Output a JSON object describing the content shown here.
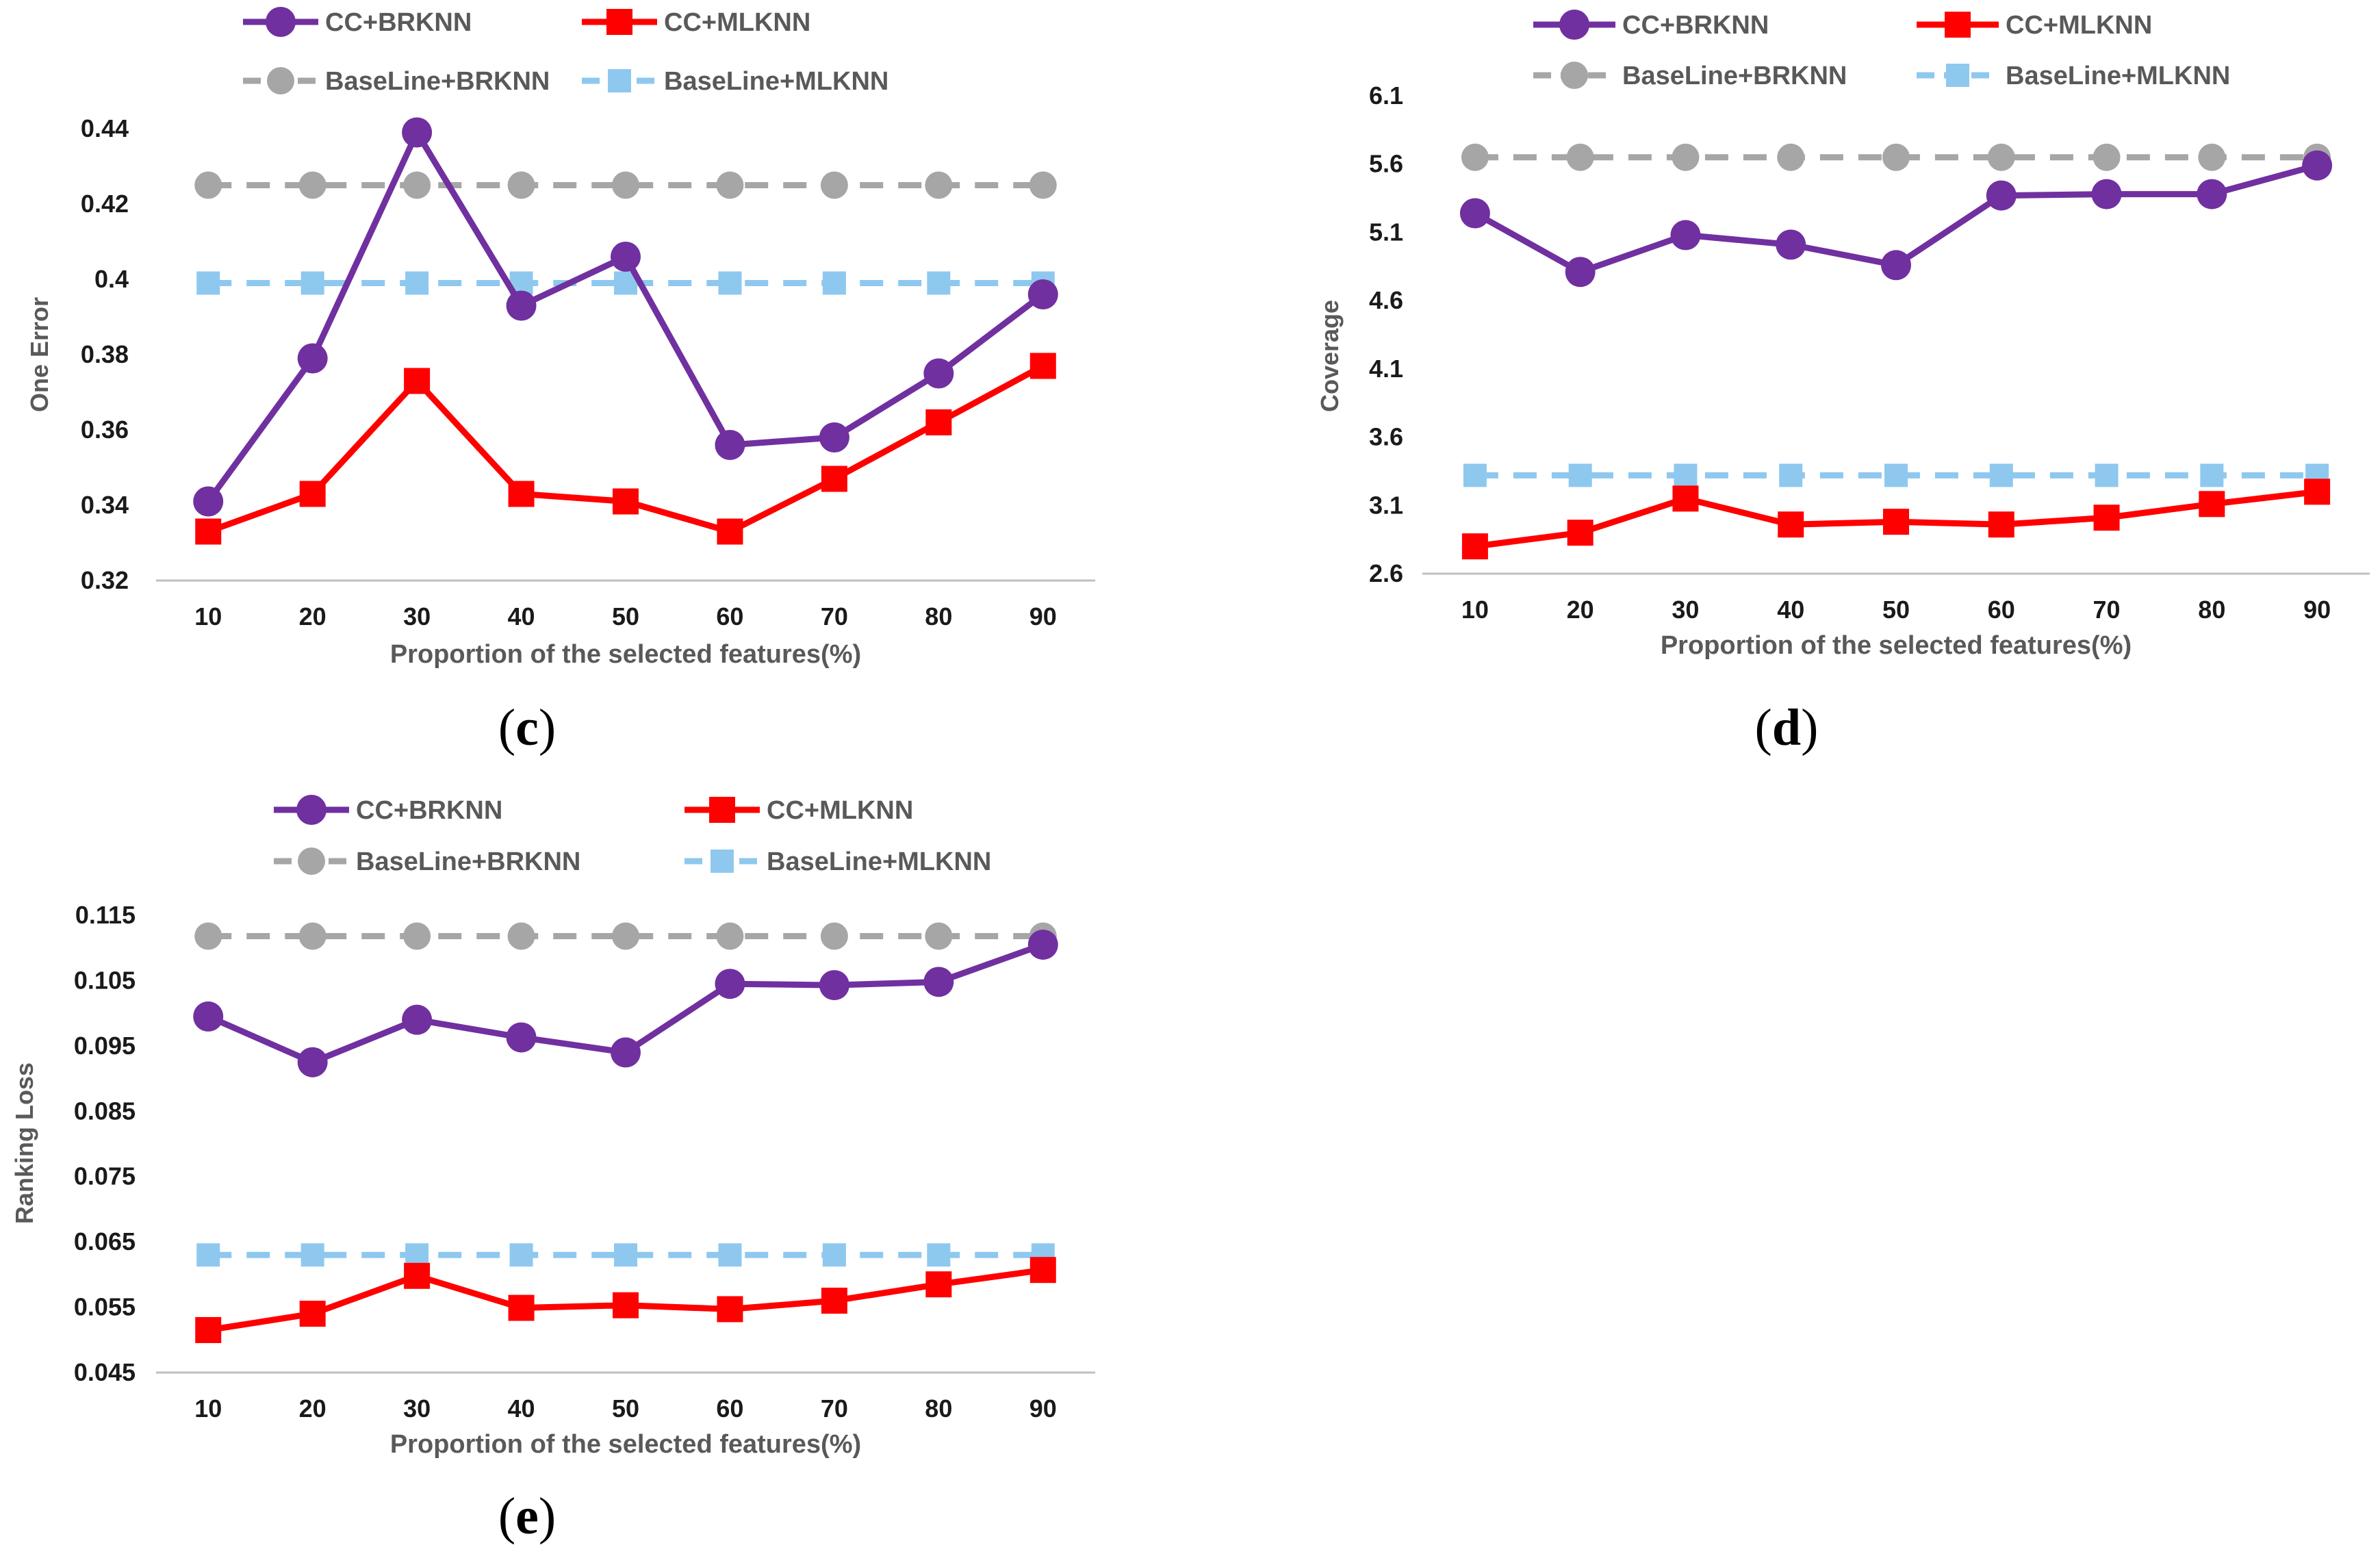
{
  "colors": {
    "cc_brknn": "#7030a0",
    "cc_mlknn": "#ff0000",
    "baseline_brknn": "#a6a6a6",
    "baseline_mlknn": "#8ec8ef",
    "axis": "#bfbfbf"
  },
  "chart_data": [
    {
      "type": "line",
      "panel": "c",
      "caption_open": "(",
      "caption_letter": "c",
      "caption_close": ")",
      "ylabel": "One Error",
      "xlabel": "Proportion  of the selected features(%)",
      "categories": [
        "10",
        "20",
        "30",
        "40",
        "50",
        "60",
        "70",
        "80",
        "90"
      ],
      "ylim": [
        0.32,
        0.44
      ],
      "yticks": [
        0.32,
        0.34,
        0.36,
        0.38,
        0.4,
        0.42,
        0.44
      ],
      "ytick_labels": [
        "0.32",
        "0.34",
        "0.36",
        "0.38",
        "0.4",
        "0.42",
        "0.44"
      ],
      "legend": [
        "CC+BRKNN",
        "CC+MLKNN",
        "BaseLine+BRKNN",
        "BaseLine+MLKNN"
      ],
      "series": [
        {
          "name": "CC+BRKNN",
          "values": [
            0.341,
            0.379,
            0.439,
            0.393,
            0.406,
            0.356,
            0.358,
            0.375,
            0.396
          ]
        },
        {
          "name": "CC+MLKNN",
          "values": [
            0.333,
            0.343,
            0.373,
            0.343,
            0.341,
            0.333,
            0.347,
            0.362,
            0.377
          ]
        },
        {
          "name": "BaseLine+BRKNN",
          "values": [
            0.425,
            0.425,
            0.425,
            0.425,
            0.425,
            0.425,
            0.425,
            0.425,
            0.425
          ]
        },
        {
          "name": "BaseLine+MLKNN",
          "values": [
            0.399,
            0.399,
            0.399,
            0.399,
            0.399,
            0.399,
            0.399,
            0.399,
            0.399
          ]
        }
      ]
    },
    {
      "type": "line",
      "panel": "d",
      "caption_open": "(",
      "caption_letter": "d",
      "caption_close": ")",
      "ylabel": "Coverage",
      "xlabel": "Proportion  of the selected features(%)",
      "categories": [
        "10",
        "20",
        "30",
        "40",
        "50",
        "60",
        "70",
        "80",
        "90"
      ],
      "ylim": [
        2.6,
        6.1
      ],
      "yticks": [
        2.6,
        3.1,
        3.6,
        4.1,
        4.6,
        5.1,
        5.6,
        6.1
      ],
      "ytick_labels": [
        "2.6",
        "3.1",
        "3.6",
        "4.1",
        "4.6",
        "5.1",
        "5.6",
        "6.1"
      ],
      "legend": [
        "CC+BRKNN",
        "CC+MLKNN",
        "BaseLine+BRKNN",
        "BaseLine+MLKNN"
      ],
      "series": [
        {
          "name": "CC+BRKNN",
          "values": [
            5.24,
            4.81,
            5.08,
            5.01,
            4.86,
            5.37,
            5.38,
            5.38,
            5.59
          ]
        },
        {
          "name": "CC+MLKNN",
          "values": [
            2.8,
            2.9,
            3.15,
            2.96,
            2.98,
            2.96,
            3.01,
            3.11,
            3.2
          ]
        },
        {
          "name": "BaseLine+BRKNN",
          "values": [
            5.65,
            5.65,
            5.65,
            5.65,
            5.65,
            5.65,
            5.65,
            5.65,
            5.65
          ]
        },
        {
          "name": "BaseLine+MLKNN",
          "values": [
            3.32,
            3.32,
            3.32,
            3.32,
            3.32,
            3.32,
            3.32,
            3.32,
            3.32
          ]
        }
      ]
    },
    {
      "type": "line",
      "panel": "e",
      "caption_open": "(",
      "caption_letter": "e",
      "caption_close": ")",
      "ylabel": "Ranking Loss",
      "xlabel": "Proportion  of the selected features(%)",
      "categories": [
        "10",
        "20",
        "30",
        "40",
        "50",
        "60",
        "70",
        "80",
        "90"
      ],
      "ylim": [
        0.045,
        0.115
      ],
      "yticks": [
        0.045,
        0.055,
        0.065,
        0.075,
        0.085,
        0.095,
        0.105,
        0.115
      ],
      "ytick_labels": [
        "0.045",
        "0.055",
        "0.065",
        "0.075",
        "0.085",
        "0.095",
        "0.105",
        "0.115"
      ],
      "legend": [
        "CC+BRKNN",
        "CC+MLKNN",
        "BaseLine+BRKNN",
        "BaseLine+MLKNN"
      ],
      "series": [
        {
          "name": "CC+BRKNN",
          "values": [
            0.0995,
            0.0925,
            0.099,
            0.0963,
            0.094,
            0.1045,
            0.1043,
            0.1048,
            0.1105
          ]
        },
        {
          "name": "CC+MLKNN",
          "values": [
            0.0515,
            0.054,
            0.0598,
            0.0549,
            0.0553,
            0.0547,
            0.056,
            0.0585,
            0.0607
          ]
        },
        {
          "name": "BaseLine+BRKNN",
          "values": [
            0.1118,
            0.1118,
            0.1118,
            0.1118,
            0.1118,
            0.1118,
            0.1118,
            0.1118,
            0.1118
          ]
        },
        {
          "name": "BaseLine+MLKNN",
          "values": [
            0.063,
            0.063,
            0.063,
            0.063,
            0.063,
            0.063,
            0.063,
            0.063,
            0.063
          ]
        }
      ]
    }
  ]
}
